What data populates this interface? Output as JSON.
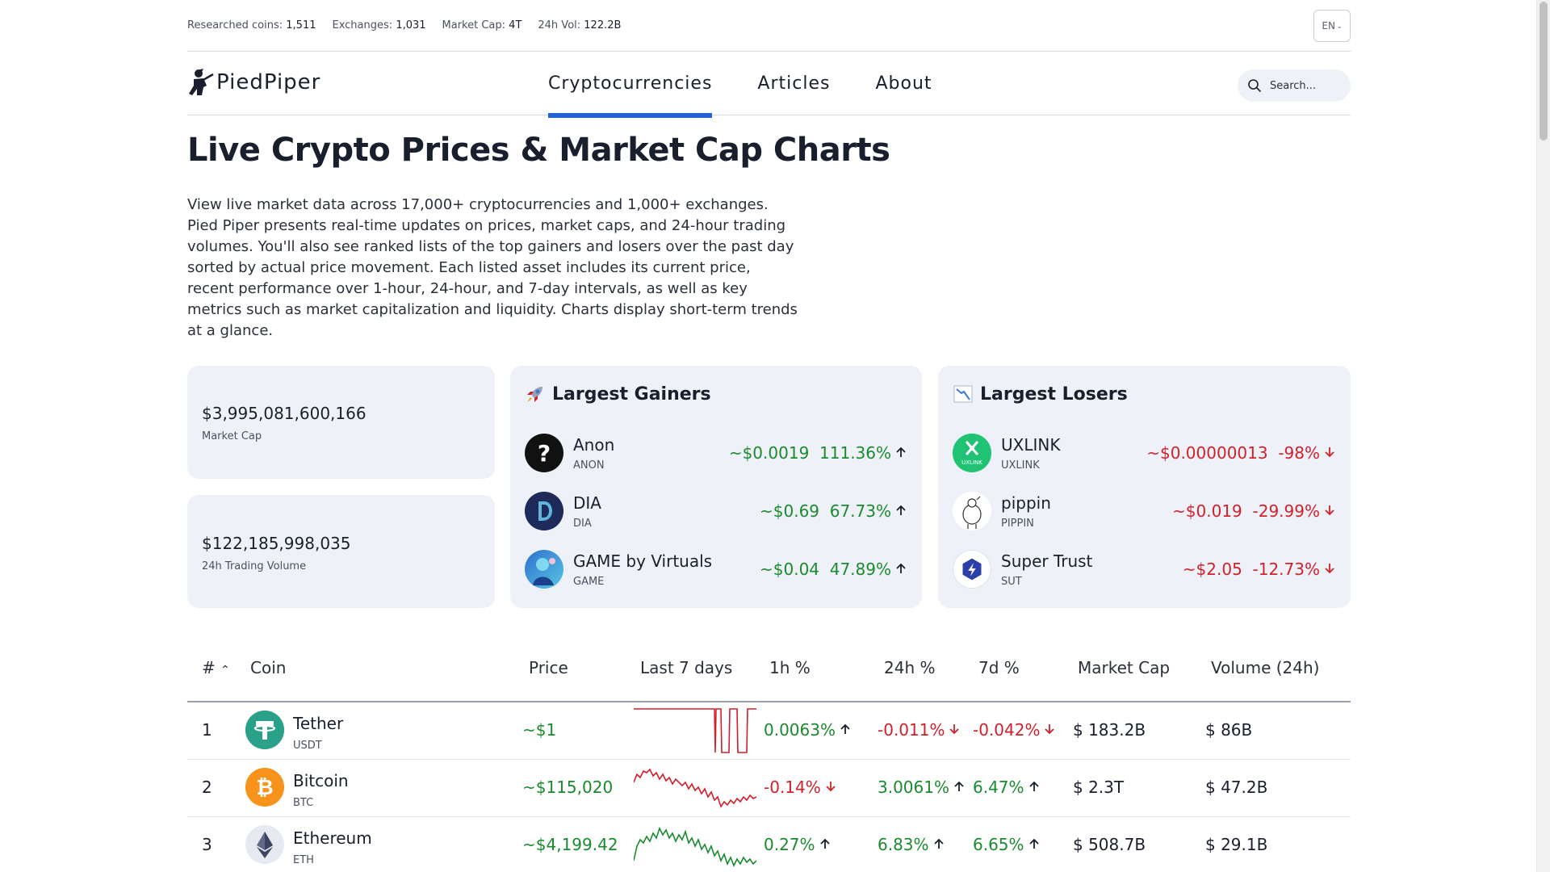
{
  "topbar": {
    "stats": [
      {
        "label": "Researched coins:",
        "value": "1,511"
      },
      {
        "label": "Exchanges:",
        "value": "1,031"
      },
      {
        "label": "Market Cap:",
        "value": "4T"
      },
      {
        "label": "24h Vol:",
        "value": "122.2B"
      }
    ],
    "language": "EN"
  },
  "nav": {
    "brand": "PiedPiper",
    "items": [
      {
        "label": "Cryptocurrencies",
        "active": true
      },
      {
        "label": "Articles",
        "active": false
      },
      {
        "label": "About",
        "active": false
      }
    ],
    "search_placeholder": "Search..."
  },
  "hero": {
    "title": "Live Crypto Prices & Market Cap Charts",
    "intro": "View live market data across 17,000+ cryptocurrencies and 1,000+ exchanges. Pied Piper presents real-time updates on prices, market caps, and 24-hour trading volumes. You'll also see ranked lists of the top gainers and losers over the past day sorted by actual price movement. Each listed asset includes its current price, recent performance over 1-hour, 24-hour, and 7-day intervals, as well as key metrics such as market capitalization and liquidity. Charts display short-term trends at a glance."
  },
  "summary": {
    "market_cap": {
      "value": "$3,995,081,600,166",
      "label": "Market Cap"
    },
    "volume": {
      "value": "$122,185,998,035",
      "label": "24h Trading Volume"
    }
  },
  "gainers": {
    "title": "Largest Gainers",
    "icon": "rocket-icon",
    "items": [
      {
        "name": "Anon",
        "symbol": "ANON",
        "price": "~$0.0019",
        "change": "111.36%"
      },
      {
        "name": "DIA",
        "symbol": "DIA",
        "price": "~$0.69",
        "change": "67.73%"
      },
      {
        "name": "GAME by Virtuals",
        "symbol": "GAME",
        "price": "~$0.04",
        "change": "47.89%"
      }
    ]
  },
  "losers": {
    "title": "Largest Losers",
    "icon": "chart-down-icon",
    "items": [
      {
        "name": "UXLINK",
        "symbol": "UXLINK",
        "price": "~$0.00000013",
        "change": "-98%"
      },
      {
        "name": "pippin",
        "symbol": "PIPPIN",
        "price": "~$0.019",
        "change": "-29.99%"
      },
      {
        "name": "Super Trust",
        "symbol": "SUT",
        "price": "~$2.05",
        "change": "-12.73%"
      }
    ]
  },
  "table": {
    "columns": {
      "rank": "#",
      "coin": "Coin",
      "price": "Price",
      "last7": "Last 7 days",
      "h1": "1h %",
      "h24": "24h %",
      "d7": "7d %",
      "mcap": "Market Cap",
      "vol": "Volume (24h)"
    },
    "rows": [
      {
        "rank": "1",
        "name": "Tether",
        "symbol": "USDT",
        "price": "~$1",
        "h1": "0.0063%",
        "h24": "-0.011%",
        "d7": "-0.042%",
        "mcap": "$ 183.2B",
        "vol": "$ 86B"
      },
      {
        "rank": "2",
        "name": "Bitcoin",
        "symbol": "BTC",
        "price": "~$115,020",
        "h1": "-0.14%",
        "h24": "3.0061%",
        "d7": "6.47%",
        "mcap": "$ 2.3T",
        "vol": "$ 47.2B"
      },
      {
        "rank": "3",
        "name": "Ethereum",
        "symbol": "ETH",
        "price": "~$4,199.42",
        "h1": "0.27%",
        "h24": "6.83%",
        "d7": "6.65%",
        "mcap": "$ 508.7B",
        "vol": "$ 29.1B"
      }
    ]
  },
  "colors": {
    "accent": "#2463d6",
    "up": "#1a8a2e",
    "down": "#d2202a",
    "card": "#eef2f8"
  }
}
